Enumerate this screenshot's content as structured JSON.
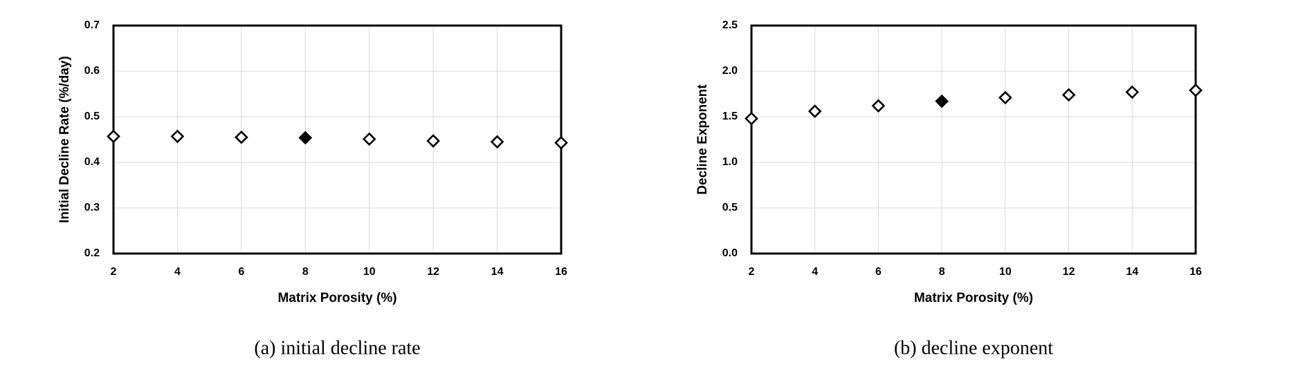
{
  "chart_data": [
    {
      "type": "scatter",
      "caption": "(a) initial decline rate",
      "x_label": "Matrix Porosity (%)",
      "y_label": "Initial Decline Rate (%/day)",
      "x": [
        2,
        4,
        6,
        8,
        10,
        12,
        14,
        16
      ],
      "values": [
        0.457,
        0.457,
        0.455,
        0.454,
        0.451,
        0.447,
        0.445,
        0.443
      ],
      "filled": [
        false,
        false,
        false,
        true,
        false,
        false,
        false,
        false
      ],
      "color": "#000000",
      "xlim": [
        2,
        16
      ],
      "xticks": [
        2,
        4,
        6,
        8,
        10,
        12,
        14,
        16
      ],
      "ylim": [
        0.2,
        0.7
      ],
      "yticks": [
        0.2,
        0.3,
        0.4,
        0.5,
        0.6,
        0.7
      ],
      "grid": true
    },
    {
      "type": "scatter",
      "caption": "(b) decline exponent",
      "x_label": "Matrix Porosity (%)",
      "y_label": "Decline Exponent",
      "x": [
        2,
        4,
        6,
        8,
        10,
        12,
        14,
        16
      ],
      "values": [
        1.48,
        1.56,
        1.62,
        1.67,
        1.71,
        1.74,
        1.77,
        1.79
      ],
      "filled": [
        false,
        false,
        false,
        true,
        false,
        false,
        false,
        false
      ],
      "color": "#000000",
      "xlim": [
        2,
        16
      ],
      "xticks": [
        2,
        4,
        6,
        8,
        10,
        12,
        14,
        16
      ],
      "ylim": [
        0,
        2.5
      ],
      "yticks": [
        {
          "value": 0,
          "label": "0.0"
        },
        0.5,
        {
          "value": 1,
          "label": "1.0"
        },
        1.5,
        {
          "value": 2,
          "label": "2.0"
        },
        2.5
      ],
      "grid": true
    }
  ]
}
